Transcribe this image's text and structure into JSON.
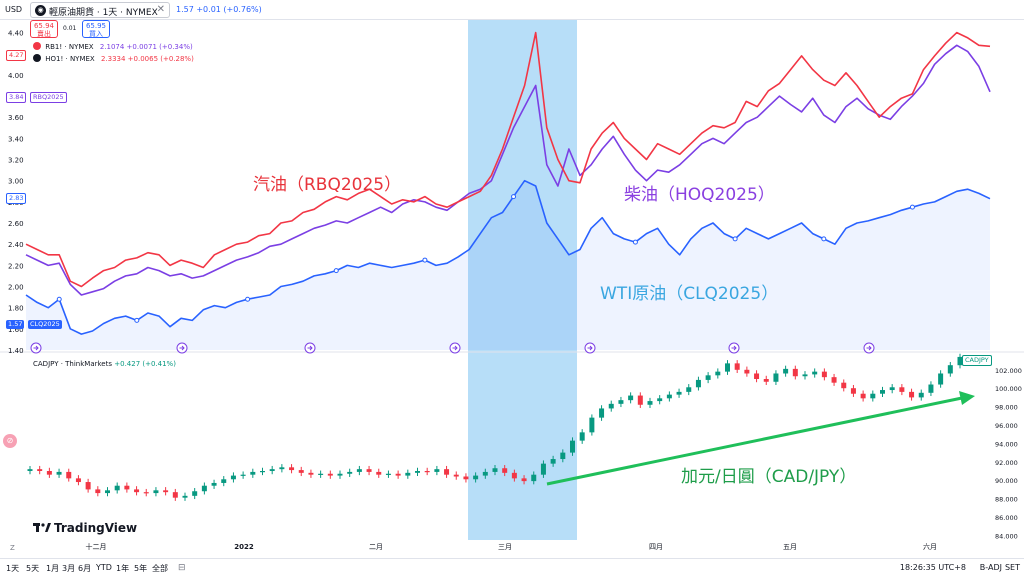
{
  "topbar": {
    "currency": "USD",
    "symbol_icon": "circle-logo-icon",
    "symbol_title": "輕原油期貨 · 1天 · NYMEX",
    "symbol_change": "1.57  +0.01 (+0.76%)",
    "sell_price": "65.94",
    "sell_label": "賣出",
    "spread": "0.01",
    "buy_price": "65.95",
    "buy_label": "買入"
  },
  "legend": {
    "rb_label": "RB1! · NYMEX",
    "rb_values": "2.1074  +0.0071 (+0.34%)",
    "ho_label": "HO1! · NYMEX",
    "ho_values": "2.3334  +0.0065 (+0.28%)",
    "rb_color": "#f23645",
    "ho_color": "#7b3fe4"
  },
  "panel2": {
    "title": "CADJPY · ThinkMarkets",
    "change": "+0.427 (+0.41%)"
  },
  "annotations": {
    "gasoline": "汽油（RBQ2025）",
    "diesel": "柴油（HOQ2025）",
    "wti": "WTI原油（CLQ2025）",
    "cadjpy": "加元/日圓（CAD/JPY）"
  },
  "axis_tags": {
    "rb_price": "4.27",
    "rb_tag": "RBQ2025",
    "ho_price": "3.84",
    "cl_price_top": "2.83",
    "cl_price": "1.57",
    "cl_tag": "CLQ2025",
    "cadjpy_tag": "CADJPY"
  },
  "bottombar": {
    "timeframes": [
      "1天",
      "5天",
      "1月",
      "3月",
      "6月",
      "YTD",
      "1年",
      "5年",
      "全部"
    ],
    "time_readout": "18:26:35 UTC+8",
    "badj": "B-ADJ",
    "set": "SET",
    "calendar_icon": "calendar-range-icon"
  },
  "brand": "TradingView",
  "chart_data": [
    {
      "type": "line",
      "title": "",
      "x_ticks": [
        "十二月",
        "2022",
        "二月",
        "三月",
        "四月",
        "五月",
        "六月"
      ],
      "y_ticks": [
        "1.40",
        "1.60",
        "1.80",
        "2.00",
        "2.20",
        "2.40",
        "2.60",
        "2.80",
        "3.00",
        "3.20",
        "3.40",
        "3.60",
        "3.80",
        "4.00",
        "4.20",
        "4.40"
      ],
      "ylim": [
        1.4,
        4.5
      ],
      "highlight_band": "三月",
      "series": [
        {
          "name": "RBQ2025",
          "color": "#f23645",
          "values": [
            2.4,
            2.35,
            2.3,
            2.3,
            2.05,
            2.0,
            2.08,
            2.15,
            2.18,
            2.25,
            2.27,
            2.32,
            2.3,
            2.2,
            2.25,
            2.22,
            2.18,
            2.3,
            2.35,
            2.4,
            2.42,
            2.48,
            2.5,
            2.6,
            2.62,
            2.7,
            2.73,
            2.8,
            2.85,
            2.82,
            2.88,
            2.92,
            2.85,
            2.78,
            2.82,
            2.8,
            2.85,
            2.78,
            2.75,
            2.8,
            2.85,
            2.9,
            3.05,
            3.3,
            3.6,
            3.9,
            4.4,
            3.5,
            3.2,
            3.0,
            2.98,
            3.3,
            3.45,
            3.55,
            3.4,
            3.3,
            3.2,
            3.35,
            3.3,
            3.25,
            3.35,
            3.45,
            3.52,
            3.5,
            3.55,
            3.75,
            3.7,
            3.85,
            3.92,
            4.05,
            4.18,
            4.05,
            3.95,
            3.9,
            4.02,
            3.9,
            3.75,
            3.6,
            3.7,
            3.78,
            3.82,
            4.05,
            4.18,
            4.3,
            4.4,
            4.35,
            4.28,
            4.27
          ]
        },
        {
          "name": "HOQ2025",
          "color": "#7b3fe4",
          "values": [
            2.3,
            2.25,
            2.2,
            2.22,
            2.02,
            1.92,
            1.95,
            1.98,
            2.05,
            2.1,
            2.12,
            2.18,
            2.15,
            2.1,
            2.12,
            2.08,
            2.1,
            2.15,
            2.2,
            2.25,
            2.28,
            2.32,
            2.38,
            2.4,
            2.45,
            2.5,
            2.55,
            2.58,
            2.62,
            2.6,
            2.65,
            2.7,
            2.75,
            2.7,
            2.78,
            2.82,
            2.8,
            2.75,
            2.72,
            2.8,
            2.88,
            2.92,
            3.0,
            3.25,
            3.5,
            3.7,
            3.9,
            3.15,
            2.95,
            3.3,
            3.05,
            3.15,
            3.3,
            3.42,
            3.25,
            3.1,
            3.0,
            3.1,
            3.08,
            3.15,
            3.25,
            3.35,
            3.4,
            3.35,
            3.45,
            3.55,
            3.6,
            3.7,
            3.8,
            3.72,
            3.65,
            3.78,
            3.62,
            3.55,
            3.7,
            3.78,
            3.68,
            3.62,
            3.58,
            3.7,
            3.8,
            3.92,
            4.1,
            4.2,
            4.28,
            4.22,
            4.08,
            3.84
          ]
        },
        {
          "name": "CLQ2025",
          "color": "#2962ff",
          "values": [
            1.92,
            1.85,
            1.8,
            1.88,
            1.6,
            1.55,
            1.58,
            1.65,
            1.7,
            1.72,
            1.68,
            1.75,
            1.72,
            1.62,
            1.7,
            1.68,
            1.78,
            1.82,
            1.8,
            1.85,
            1.88,
            1.9,
            1.92,
            2.0,
            2.02,
            2.05,
            2.1,
            2.12,
            2.15,
            2.2,
            2.18,
            2.22,
            2.2,
            2.18,
            2.2,
            2.22,
            2.25,
            2.2,
            2.22,
            2.28,
            2.35,
            2.5,
            2.65,
            2.7,
            2.85,
            3.0,
            2.95,
            2.6,
            2.45,
            2.3,
            2.35,
            2.55,
            2.65,
            2.5,
            2.45,
            2.42,
            2.5,
            2.55,
            2.4,
            2.3,
            2.45,
            2.55,
            2.6,
            2.5,
            2.45,
            2.55,
            2.5,
            2.45,
            2.5,
            2.55,
            2.6,
            2.5,
            2.45,
            2.4,
            2.55,
            2.6,
            2.62,
            2.65,
            2.68,
            2.72,
            2.75,
            2.78,
            2.8,
            2.85,
            2.9,
            2.92,
            2.88,
            2.83
          ]
        }
      ]
    },
    {
      "type": "candlestick",
      "title": "CADJPY · ThinkMarkets",
      "y_ticks": [
        "84.000",
        "86.000",
        "88.000",
        "90.000",
        "92.000",
        "94.000",
        "96.000",
        "98.000",
        "100.000",
        "102.000"
      ],
      "ylim": [
        83.5,
        103.5
      ],
      "up_color": "#089981",
      "down_color": "#f23645",
      "series": [
        {
          "name": "CADJPY",
          "values": [
            91.2,
            91.0,
            90.6,
            90.9,
            90.2,
            89.8,
            89.0,
            88.6,
            88.9,
            89.4,
            89.0,
            88.7,
            88.6,
            88.9,
            88.7,
            88.1,
            88.3,
            88.8,
            89.4,
            89.7,
            90.1,
            90.5,
            90.6,
            90.9,
            91.0,
            91.2,
            91.4,
            91.1,
            90.8,
            90.6,
            90.7,
            90.5,
            90.7,
            90.9,
            91.2,
            90.9,
            90.6,
            90.7,
            90.5,
            90.8,
            91.0,
            90.9,
            91.2,
            90.6,
            90.4,
            90.1,
            90.5,
            90.9,
            91.3,
            90.8,
            90.2,
            89.9,
            90.6,
            91.8,
            92.3,
            93.0,
            94.3,
            95.2,
            96.8,
            97.8,
            98.3,
            98.7,
            99.2,
            98.2,
            98.6,
            98.9,
            99.3,
            99.6,
            100.1,
            100.9,
            101.4,
            101.8,
            102.7,
            102.0,
            101.6,
            101.0,
            100.7,
            101.6,
            102.1,
            101.3,
            101.5,
            101.8,
            101.2,
            100.6,
            100.0,
            99.4,
            98.9,
            99.4,
            99.8,
            100.1,
            99.6,
            99.0,
            99.5,
            100.4,
            101.6,
            102.5,
            103.4
          ]
        }
      ]
    }
  ]
}
